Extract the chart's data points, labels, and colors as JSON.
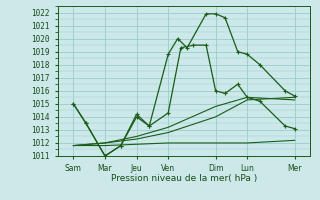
{
  "xlabel": "Pression niveau de la mer( hPa )",
  "background_color": "#cce8e8",
  "grid_color": "#99cccc",
  "line_color": "#1a5c1a",
  "ylim": [
    1011,
    1022.5
  ],
  "xlim": [
    0,
    8.0
  ],
  "xtick_positions": [
    0.5,
    1.5,
    2.5,
    3.5,
    5.0,
    6.0,
    7.5
  ],
  "xtick_labels": [
    "Sam",
    "Mar",
    "Jeu",
    "Ven",
    "Dim",
    "Lun",
    "Mer"
  ],
  "ytick_vals": [
    1011,
    1012,
    1013,
    1014,
    1015,
    1016,
    1017,
    1018,
    1019,
    1020,
    1021,
    1022
  ],
  "line1_x": [
    0.5,
    0.9,
    1.5,
    2.0,
    2.5,
    2.9,
    3.5,
    3.8,
    4.1,
    4.7,
    5.0,
    5.3,
    5.7,
    6.0,
    6.4,
    7.2,
    7.5
  ],
  "line1_y": [
    1015.0,
    1013.5,
    1011.0,
    1011.8,
    1014.0,
    1013.3,
    1018.8,
    1020.0,
    1019.3,
    1021.9,
    1021.9,
    1021.6,
    1019.0,
    1018.8,
    1018.0,
    1016.0,
    1015.6
  ],
  "line2_x": [
    0.5,
    0.9,
    1.5,
    2.0,
    2.5,
    2.9,
    3.5,
    3.9,
    4.3,
    4.7,
    5.0,
    5.3,
    5.7,
    6.0,
    6.4,
    7.2,
    7.5
  ],
  "line2_y": [
    1015.0,
    1013.5,
    1011.0,
    1011.8,
    1014.2,
    1013.3,
    1014.3,
    1019.3,
    1019.5,
    1019.5,
    1016.0,
    1015.8,
    1016.5,
    1015.5,
    1015.2,
    1013.3,
    1013.1
  ],
  "line3_x": [
    0.5,
    1.5,
    2.5,
    3.5,
    5.0,
    6.0,
    7.5
  ],
  "line3_y": [
    1011.8,
    1011.8,
    1011.9,
    1012.0,
    1012.0,
    1012.0,
    1012.2
  ],
  "line4_x": [
    0.5,
    1.5,
    2.5,
    3.5,
    5.0,
    6.0,
    7.5
  ],
  "line4_y": [
    1011.8,
    1012.0,
    1012.3,
    1012.8,
    1014.0,
    1015.3,
    1015.5
  ],
  "line5_x": [
    0.5,
    1.5,
    2.5,
    3.5,
    5.0,
    6.0,
    7.5
  ],
  "line5_y": [
    1011.8,
    1012.0,
    1012.5,
    1013.2,
    1014.8,
    1015.5,
    1015.3
  ]
}
